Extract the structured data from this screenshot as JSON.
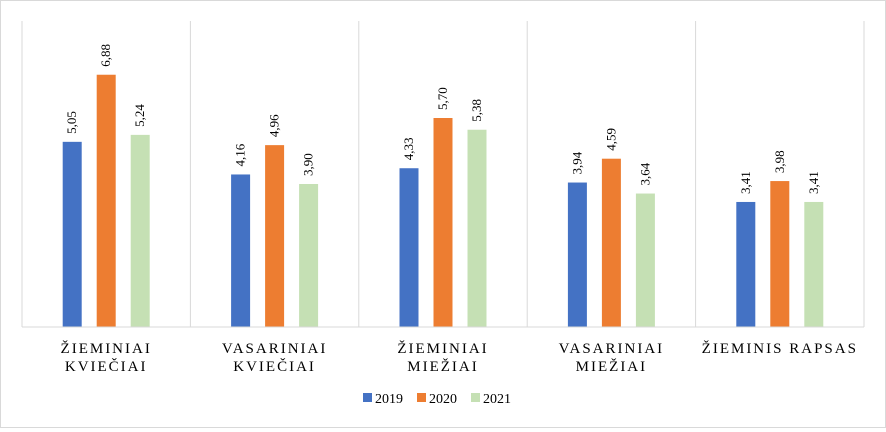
{
  "chart_data": {
    "type": "bar",
    "title": "",
    "xlabel": "",
    "ylabel": "",
    "ylim": [
      0,
      7.8
    ],
    "grid": false,
    "legend_position": "bottom",
    "categories": [
      [
        "ŽIEMINIAI",
        "KVIEČIAI"
      ],
      [
        "VASARINIAI",
        "KVIEČIAI"
      ],
      [
        "ŽIEMINIAI",
        "MIEŽIAI"
      ],
      [
        "VASARINIAI",
        "MIEŽIAI"
      ],
      [
        "ŽIEMINIS RAPSAS"
      ]
    ],
    "series": [
      {
        "name": "2019",
        "color": "#4472c4",
        "values": [
          5.05,
          4.16,
          4.33,
          3.94,
          3.41
        ],
        "labels": [
          "5,05",
          "4,16",
          "4,33",
          "3,94",
          "3,41"
        ]
      },
      {
        "name": "2020",
        "color": "#ed7d31",
        "values": [
          6.88,
          4.96,
          5.7,
          4.59,
          3.98
        ],
        "labels": [
          "6,88",
          "4,96",
          "5,70",
          "4,59",
          "3,98"
        ]
      },
      {
        "name": "2021",
        "color": "#c5e0b4",
        "values": [
          5.24,
          3.9,
          5.38,
          3.64,
          3.41
        ],
        "labels": [
          "5,24",
          "3,90",
          "5,38",
          "3,64",
          "3,41"
        ]
      }
    ]
  }
}
